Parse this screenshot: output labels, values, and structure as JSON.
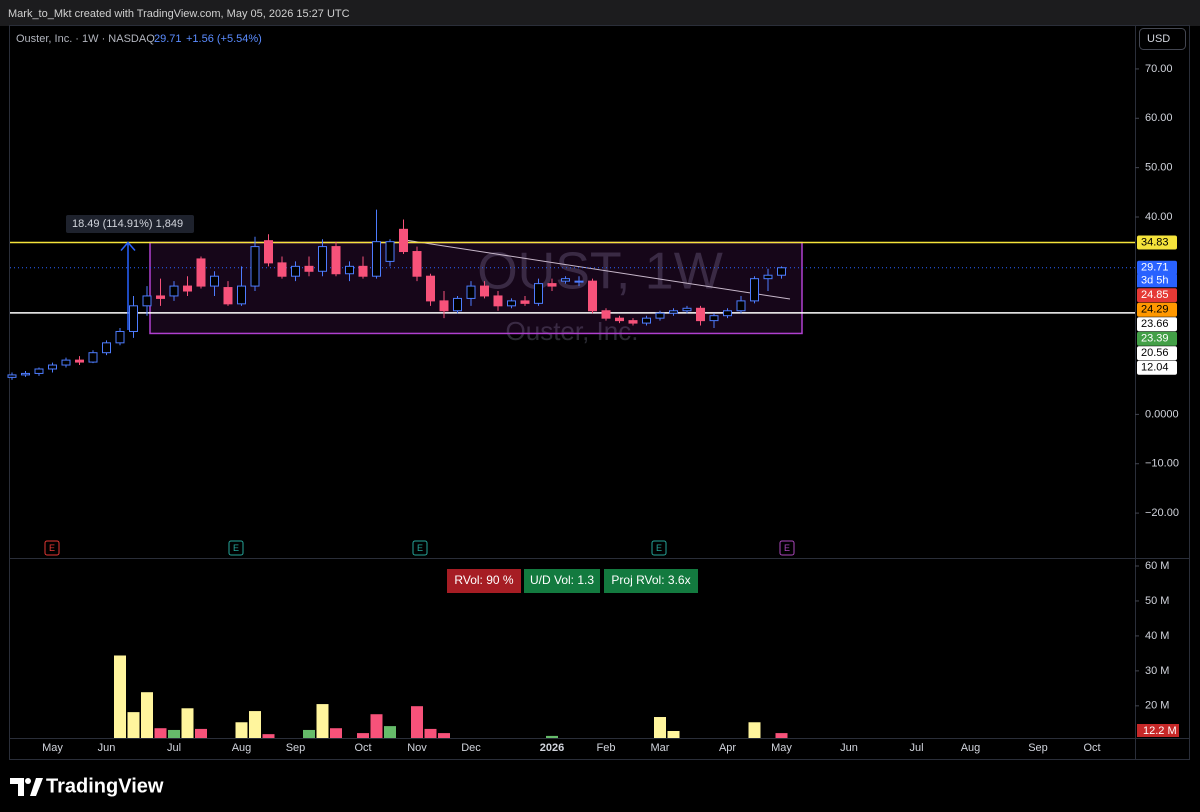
{
  "header": "Mark_to_Mkt created with TradingView.com, May 05, 2026 15:27 UTC",
  "footer": "TradingView",
  "chart_data": {
    "type": "candlestick",
    "symbol": "Ouster, Inc. · 1W · NASDAQ",
    "last": 29.71,
    "change": "+1.56 (+5.54%)",
    "currency": "USD",
    "watermark": "OUST, 1W",
    "watermark_sub": "Ouster, Inc.",
    "categories": [
      null,
      null,
      null,
      "May",
      null,
      null,
      null,
      "Jun",
      null,
      null,
      null,
      null,
      "Jul",
      null,
      null,
      null,
      null,
      "Aug",
      null,
      null,
      null,
      "Sep",
      null,
      null,
      null,
      null,
      "Oct",
      null,
      null,
      null,
      "Nov",
      null,
      null,
      null,
      "Dec",
      null,
      null,
      null,
      null,
      null,
      "2026",
      null,
      null,
      null,
      "Feb",
      null,
      null,
      null,
      "Mar",
      null,
      null,
      null,
      null,
      "Apr",
      null,
      null,
      null,
      "May",
      null,
      null,
      null,
      null,
      "Jun",
      null,
      null,
      null,
      null,
      "Jul",
      null,
      null,
      null,
      "Aug",
      null,
      null,
      null,
      null,
      "Sep",
      null,
      null,
      null,
      "Oct",
      null
    ],
    "open": [
      7.5,
      8,
      8.3,
      9.2,
      10,
      11,
      10.6,
      12.5,
      14.5,
      16.8,
      22,
      24,
      24,
      26,
      31.5,
      26,
      25.7,
      22.4,
      26,
      35.2,
      30.7,
      28,
      30,
      29,
      34,
      28.5,
      30,
      28,
      31,
      37.5,
      33,
      28,
      23,
      21,
      23.5,
      26,
      24,
      22,
      23,
      22.5,
      26.5,
      27,
      27,
      27,
      21,
      19.5,
      19,
      18.5,
      19.5,
      20.5,
      21,
      21.5,
      19,
      20,
      21,
      23,
      27.5,
      28.2,
      null,
      null,
      null,
      null,
      null,
      null,
      null,
      null,
      null,
      null,
      null,
      null,
      null,
      null,
      null,
      null,
      null,
      null,
      null,
      null,
      null,
      null,
      null,
      null
    ],
    "high": [
      8.5,
      8.8,
      9.5,
      10.5,
      11.5,
      11.8,
      13,
      15,
      17.5,
      24,
      26,
      27.5,
      27,
      28,
      32,
      29,
      27,
      30,
      36,
      36.5,
      32,
      31,
      32,
      35.5,
      35,
      31,
      32,
      41.5,
      35.5,
      39.5,
      34,
      28.5,
      25,
      24,
      27,
      27,
      25,
      23.5,
      24,
      27.5,
      27.5,
      28,
      28,
      27.5,
      21.5,
      20,
      19.5,
      20,
      21,
      21.5,
      22,
      22,
      20.5,
      21.5,
      24,
      28,
      29.5,
      30,
      null,
      null,
      null,
      null,
      null,
      null,
      null,
      null,
      null,
      null,
      null,
      null,
      null,
      null,
      null,
      null,
      null,
      null,
      null,
      null,
      null,
      null,
      null,
      null
    ],
    "low": [
      7,
      7.6,
      7.8,
      8.5,
      9.5,
      10,
      10.4,
      12,
      14,
      15.5,
      20,
      22,
      23,
      24,
      25.5,
      24,
      22,
      22,
      25,
      30,
      27.5,
      27,
      28,
      28,
      28,
      27,
      27.5,
      27.5,
      30,
      32.5,
      27,
      22,
      19.5,
      20.5,
      22,
      23.5,
      21,
      21.5,
      22,
      22,
      25,
      26.5,
      26,
      20.5,
      19,
      18.5,
      18,
      18,
      19,
      20,
      20.5,
      18,
      17.5,
      19.5,
      20.5,
      22.5,
      25,
      27.5,
      null,
      null,
      null,
      null,
      null,
      null,
      null,
      null,
      null,
      null,
      null,
      null,
      null,
      null,
      null,
      null,
      null,
      null,
      null,
      null,
      null,
      null,
      null,
      null
    ],
    "close": [
      8,
      8.3,
      9.2,
      10,
      11,
      10.6,
      12.5,
      14.5,
      16.8,
      22,
      24,
      23.5,
      26,
      25,
      26,
      28,
      22.4,
      26,
      34,
      30.7,
      28,
      30,
      29,
      34,
      28.5,
      30,
      28,
      35,
      35,
      33,
      28,
      23,
      21,
      23.5,
      26,
      24,
      22,
      23,
      22.5,
      26.5,
      26,
      27.5,
      27,
      21,
      19.5,
      19,
      18.5,
      19.5,
      20.5,
      21,
      21.5,
      19,
      20,
      21,
      23,
      27.5,
      28.2,
      29.71,
      null,
      null,
      null,
      null,
      null,
      null,
      null,
      null,
      null,
      null,
      null,
      null,
      null,
      null,
      null,
      null,
      null,
      null,
      null,
      null,
      null,
      null,
      null,
      null
    ],
    "up_color": "#4d7cfe",
    "down_color": "#f7527a",
    "ylim": [
      -29.1,
      78.7
    ],
    "yticks": [
      {
        "value": 70,
        "label": "70.00"
      },
      {
        "value": 60,
        "label": "60.00"
      },
      {
        "value": 50,
        "label": "50.00"
      },
      {
        "value": 40,
        "label": "40.00"
      },
      {
        "value": 0,
        "label": "0.0000"
      },
      {
        "value": -10,
        "label": "−10.00"
      },
      {
        "value": -20,
        "label": "−20.00"
      }
    ],
    "price_levels": {
      "values": [
        34.83,
        29.71,
        24.85,
        24.29,
        23.66,
        23.39,
        20.56,
        12.04
      ],
      "colors": [
        "#f5e33b",
        "#2962ff",
        "#e53935",
        "#ff9800",
        "#ffffff",
        "#43a047",
        "#ffffff",
        "#ffffff"
      ],
      "text_colors": [
        "#000000",
        "#ffffff",
        "#ffffff",
        "#000000",
        "#000000",
        "#ffffff",
        "#000000",
        "#000000"
      ]
    },
    "countdown": "3d 5h",
    "range_box_bottom": 16.4,
    "measure": "18.49 (114.91%) 1,849",
    "earnings": [
      "E",
      "E",
      "E",
      "E",
      "E"
    ],
    "volume": {
      "values": [
        null,
        null,
        null,
        null,
        null,
        null,
        null,
        null,
        34.4,
        18.2,
        23.9,
        13.6,
        13.1,
        19.3,
        13.4,
        null,
        null,
        15.3,
        18.5,
        11.9,
        null,
        null,
        13.1,
        20.5,
        13.6,
        null,
        12.2,
        17.6,
        14.2,
        null,
        19.9,
        13.4,
        12.2,
        null,
        null,
        null,
        null,
        null,
        null,
        null,
        11.4,
        null,
        null,
        null,
        null,
        null,
        null,
        null,
        16.8,
        12.8,
        null,
        null,
        null,
        null,
        null,
        15.3,
        null,
        12.2,
        null,
        null,
        null,
        null,
        null,
        null,
        null,
        null,
        null,
        null,
        null,
        null,
        null,
        null,
        null,
        null,
        null,
        null,
        null,
        null,
        null,
        null,
        null,
        null
      ],
      "colors": [
        null,
        null,
        null,
        null,
        null,
        null,
        null,
        null,
        "#fff59d",
        "#fff59d",
        "#fff59d",
        "#f7527a",
        "#66bb6a",
        "#fff59d",
        "#f7527a",
        null,
        null,
        "#fff59d",
        "#fff59d",
        "#f7527a",
        null,
        null,
        "#66bb6a",
        "#fff59d",
        "#f7527a",
        null,
        "#f7527a",
        "#f7527a",
        "#66bb6a",
        null,
        "#f7527a",
        "#f7527a",
        "#f7527a",
        null,
        null,
        null,
        null,
        null,
        null,
        null,
        "#66bb6a",
        null,
        null,
        null,
        null,
        null,
        null,
        null,
        "#fff59d",
        "#fff59d",
        null,
        null,
        null,
        null,
        null,
        "#fff59d",
        null,
        "#f7527a",
        null,
        null,
        null,
        null,
        null,
        null,
        null,
        null,
        null,
        null,
        null,
        null,
        null,
        null,
        null,
        null,
        null,
        null,
        null,
        null,
        null,
        null,
        null,
        null
      ],
      "ylim": [
        10.8,
        62
      ],
      "yticks": [
        {
          "value": 60,
          "label": "60 M"
        },
        {
          "value": 50,
          "label": "50 M"
        },
        {
          "value": 40,
          "label": "40 M"
        },
        {
          "value": 30,
          "label": "30 M"
        },
        {
          "value": 20,
          "label": "20 M"
        }
      ],
      "last_value_label": "12.2 M",
      "badges": [
        "RVol: 90 %",
        "U/D Vol: 1.3",
        "Proj RVol: 3.6x"
      ]
    }
  }
}
